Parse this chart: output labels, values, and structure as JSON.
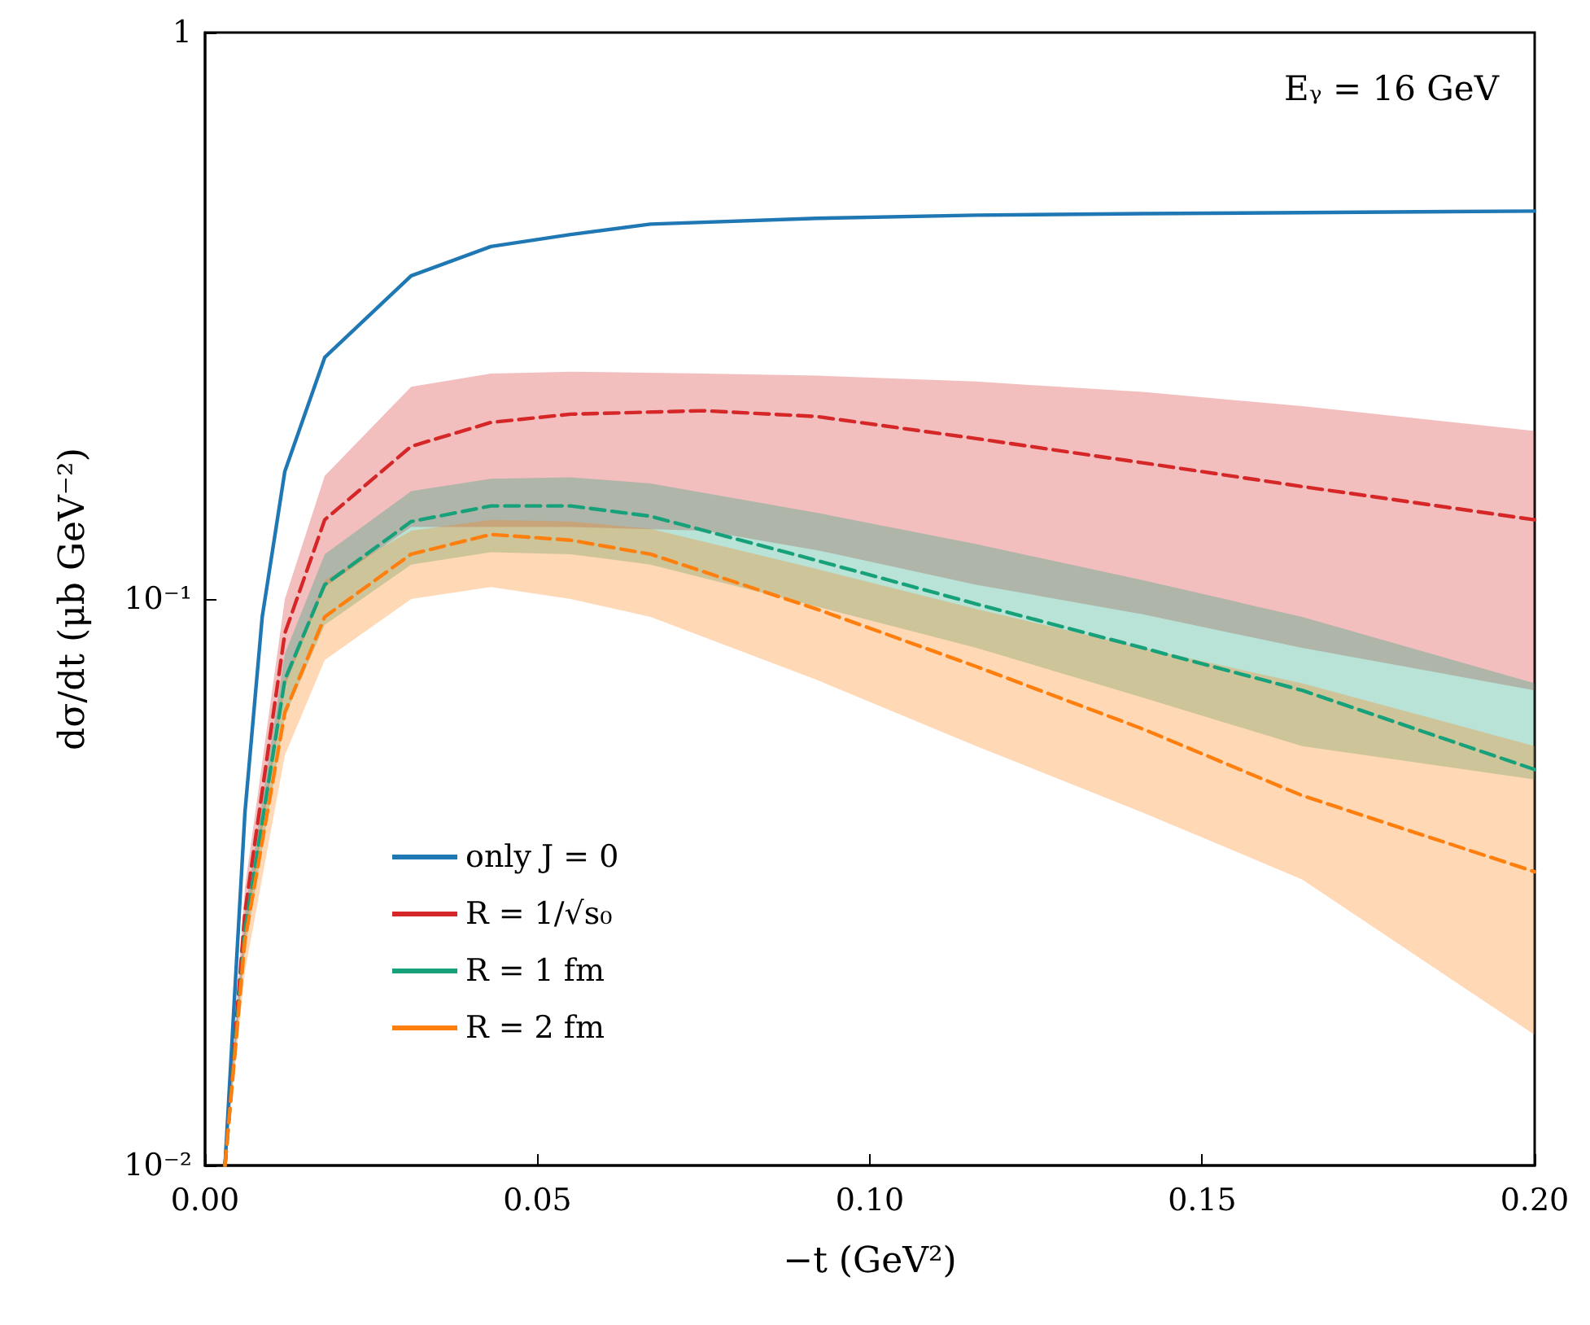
{
  "chart_data": {
    "type": "line",
    "xlabel": "−t (GeV²)",
    "ylabel": "dσ/dt (μb GeV⁻²)",
    "annotations": [
      "Eᵧ = 16 GeV"
    ],
    "xlim": [
      0,
      0.2
    ],
    "xticks": [
      {
        "value": 0,
        "label": "0.00"
      },
      {
        "value": 0.05,
        "label": "0.05"
      },
      {
        "value": 0.1,
        "label": "0.10"
      },
      {
        "value": 0.15,
        "label": "0.15"
      },
      {
        "value": 0.2,
        "label": "0.20"
      }
    ],
    "ylim": [
      0.01,
      1
    ],
    "yticks": [
      {
        "value": 0.01,
        "label": "10⁻²"
      },
      {
        "value": 0.1,
        "label": "10⁻¹"
      },
      {
        "value": 1,
        "label": "1"
      }
    ],
    "log": "y",
    "legend": "bottom left",
    "marker": "none",
    "series": [
      {
        "name": "only J = 0",
        "color": "#1f77b4",
        "line_style": "solid",
        "x": [
          0.003,
          0.006,
          0.0086,
          0.012,
          0.018,
          0.031,
          0.043,
          0.055,
          0.067,
          0.092,
          0.116,
          0.141,
          0.165,
          0.2
        ],
        "values": [
          0.01,
          0.042,
          0.093,
          0.168,
          0.267,
          0.372,
          0.419,
          0.44,
          0.459,
          0.47,
          0.476,
          0.479,
          0.481,
          0.484
        ]
      },
      {
        "name": "R = 1/√s₀",
        "color": "#d62728",
        "line_style": "dashed",
        "x": [
          0.003,
          0.006,
          0.012,
          0.018,
          0.031,
          0.043,
          0.055,
          0.075,
          0.092,
          0.116,
          0.141,
          0.165,
          0.2
        ],
        "values": [
          0.01,
          0.028,
          0.087,
          0.138,
          0.186,
          0.205,
          0.212,
          0.215,
          0.21,
          0.192,
          0.174,
          0.158,
          0.138
        ],
        "lower": [
          0.01,
          0.025,
          0.07,
          0.105,
          0.134,
          0.134,
          0.134,
          0.132,
          0.122,
          0.106,
          0.094,
          0.082,
          0.069
        ],
        "upper": [
          0.01,
          0.031,
          0.1,
          0.165,
          0.237,
          0.25,
          0.252,
          0.25,
          0.248,
          0.242,
          0.232,
          0.219,
          0.198
        ]
      },
      {
        "name": "R = 1 fm",
        "color": "#17a17a",
        "line_style": "dashed",
        "x": [
          0.003,
          0.006,
          0.012,
          0.018,
          0.031,
          0.043,
          0.055,
          0.067,
          0.092,
          0.116,
          0.141,
          0.165,
          0.2
        ],
        "values": [
          0.01,
          0.026,
          0.072,
          0.106,
          0.137,
          0.146,
          0.146,
          0.14,
          0.117,
          0.098,
          0.082,
          0.069,
          0.05
        ],
        "lower": [
          0.01,
          0.024,
          0.062,
          0.09,
          0.115,
          0.121,
          0.12,
          0.115,
          0.097,
          0.082,
          0.067,
          0.055,
          0.048
        ],
        "upper": [
          0.01,
          0.028,
          0.08,
          0.12,
          0.155,
          0.163,
          0.164,
          0.16,
          0.142,
          0.125,
          0.108,
          0.093,
          0.071
        ]
      },
      {
        "name": "R = 2 fm",
        "color": "#ff7f0e",
        "line_style": "dashed",
        "x": [
          0.003,
          0.006,
          0.012,
          0.018,
          0.031,
          0.043,
          0.055,
          0.067,
          0.092,
          0.116,
          0.141,
          0.165,
          0.2
        ],
        "values": [
          0.01,
          0.025,
          0.063,
          0.093,
          0.12,
          0.13,
          0.127,
          0.12,
          0.096,
          0.076,
          0.059,
          0.045,
          0.033
        ],
        "lower": [
          0.01,
          0.022,
          0.053,
          0.078,
          0.1,
          0.105,
          0.1,
          0.093,
          0.072,
          0.055,
          0.042,
          0.032,
          0.017
        ],
        "upper": [
          0.01,
          0.027,
          0.072,
          0.108,
          0.132,
          0.138,
          0.137,
          0.133,
          0.113,
          0.096,
          0.082,
          0.071,
          0.055
        ]
      }
    ]
  }
}
